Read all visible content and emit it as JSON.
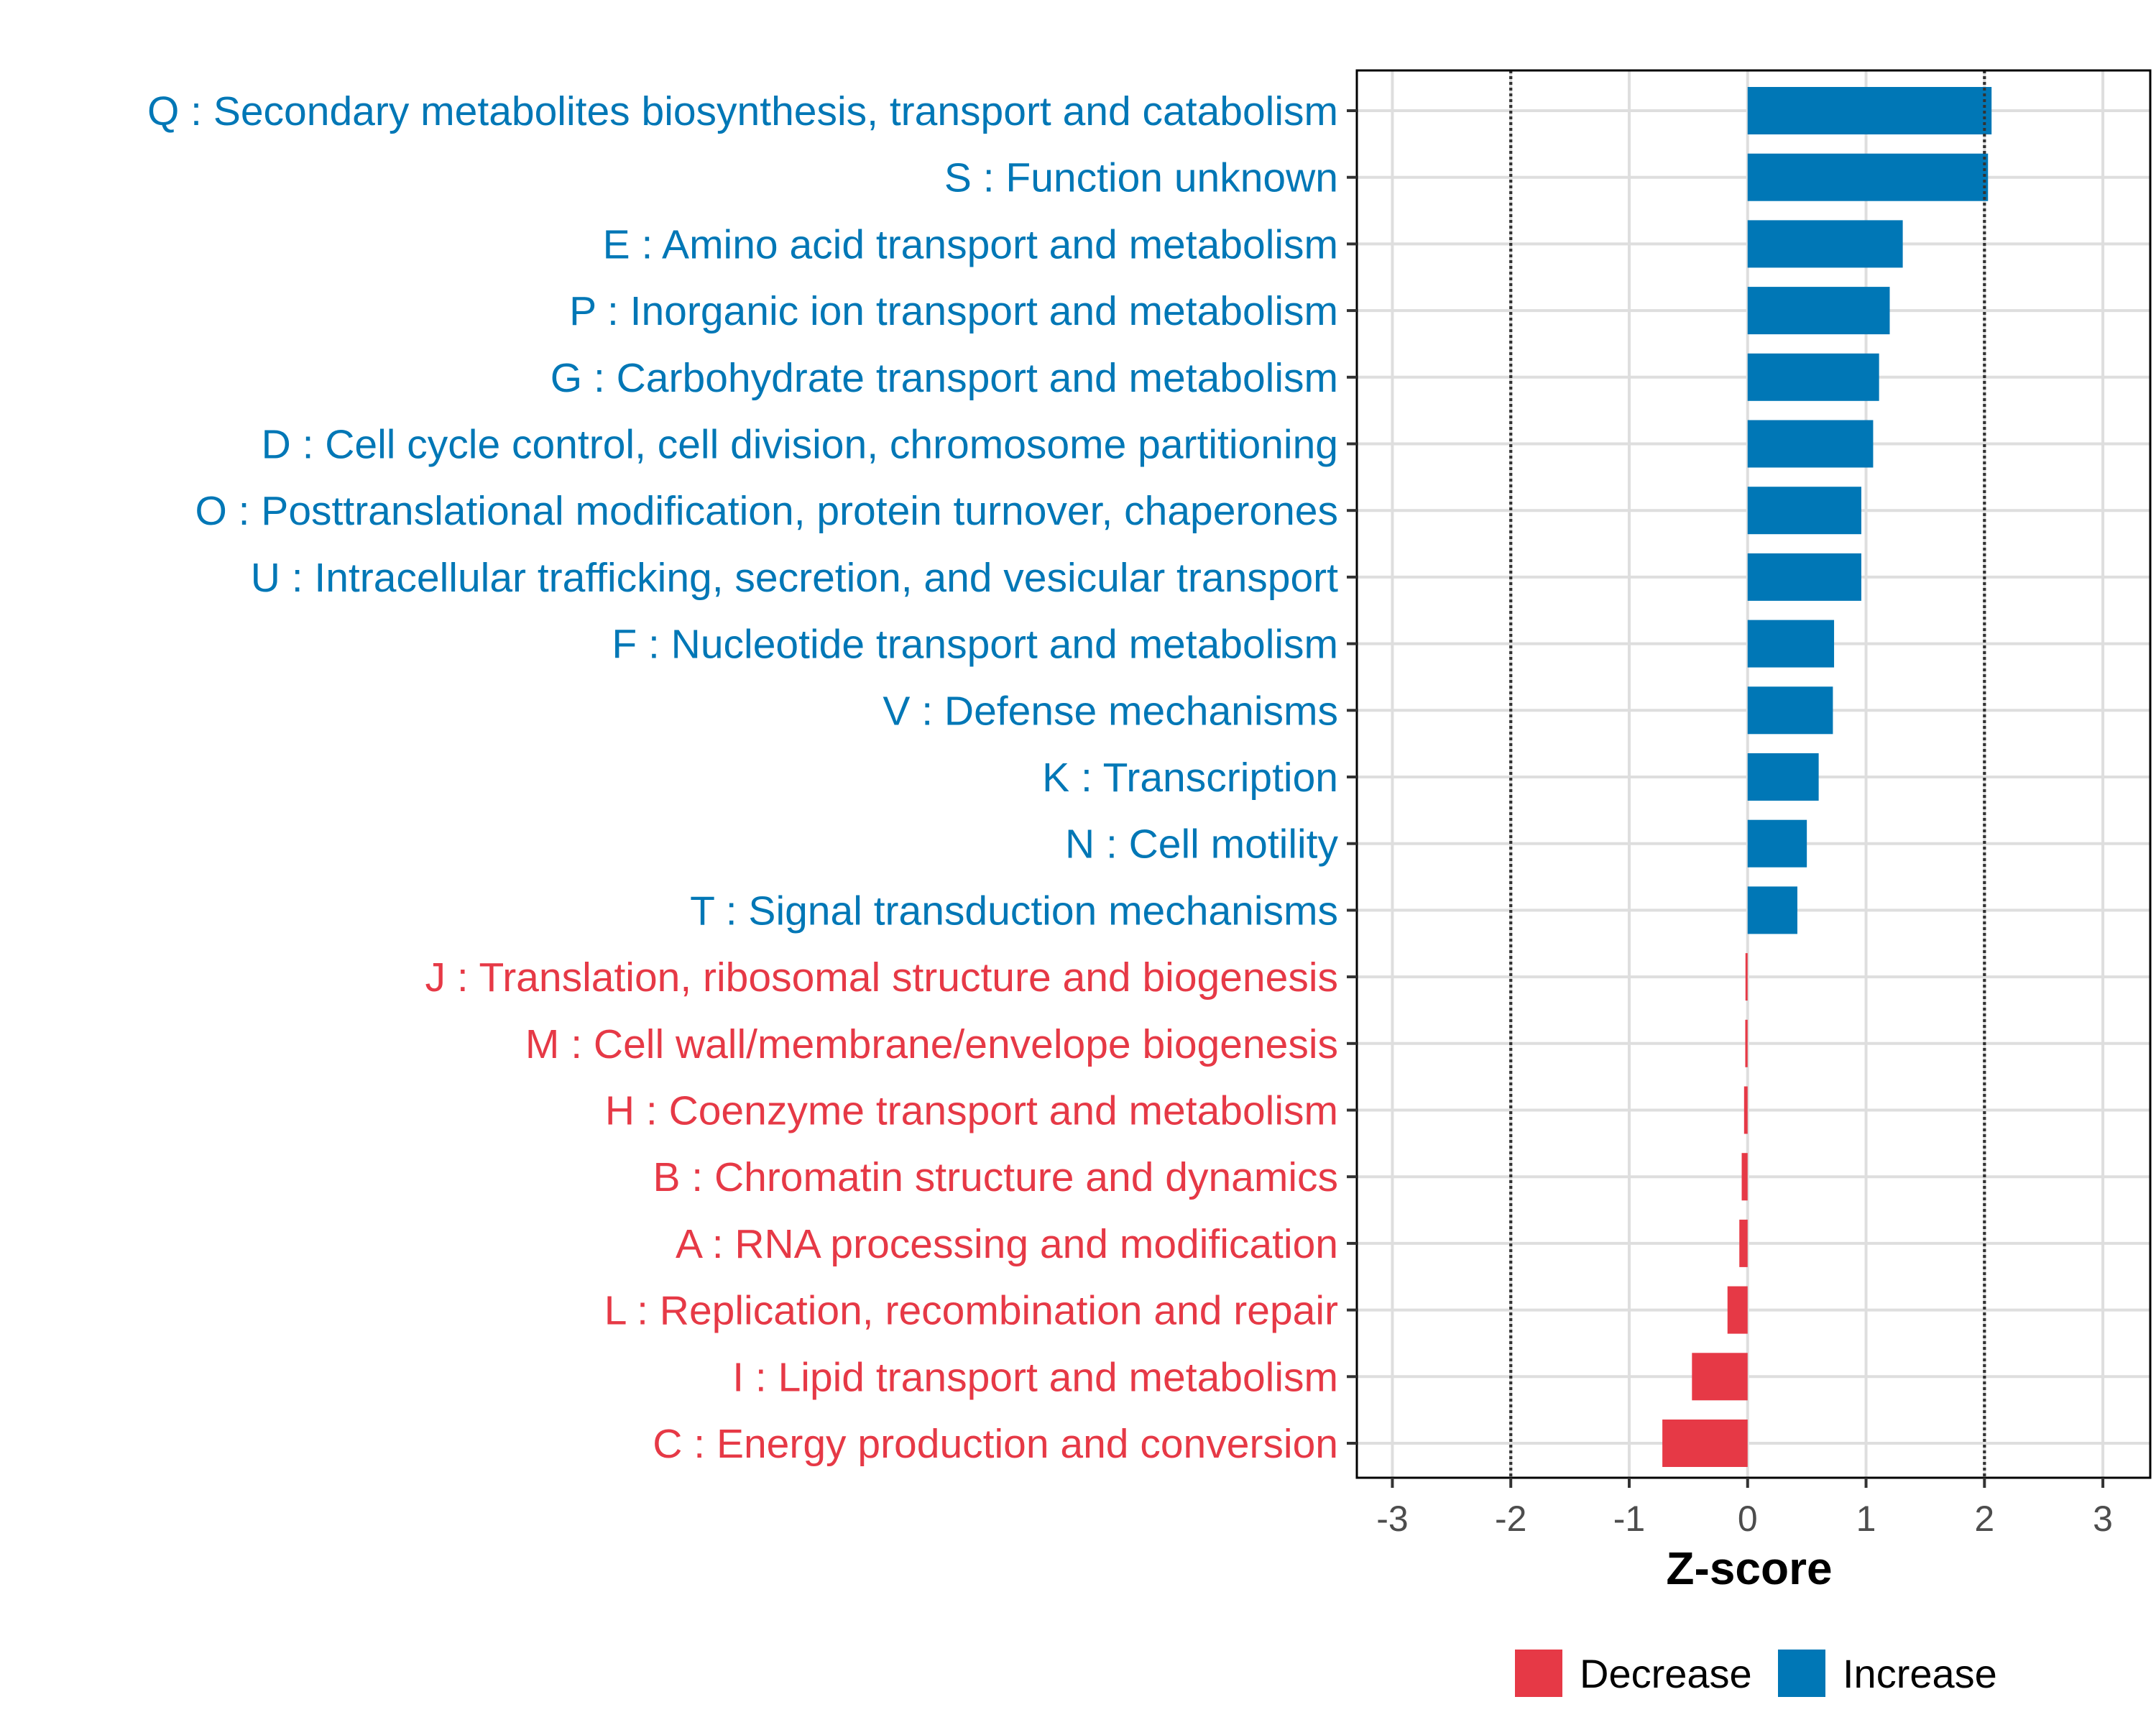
{
  "chart_data": {
    "type": "bar",
    "orientation": "horizontal",
    "title": "",
    "xlabel": "Z-score",
    "ylabel": "",
    "xlim": [
      -3.3,
      3.4
    ],
    "xticks": [
      -3,
      -2,
      -1,
      0,
      1,
      2,
      3
    ],
    "reference_lines": [
      -2,
      2
    ],
    "grid": true,
    "legend_position": "bottom",
    "colors": {
      "Decrease": "#e63946",
      "Increase": "#0077b6"
    },
    "legend": [
      {
        "name": "Decrease",
        "color": "#e63946"
      },
      {
        "name": "Increase",
        "color": "#0077b6"
      }
    ],
    "categories": [
      "Q : Secondary metabolites biosynthesis, transport and catabolism",
      "S : Function unknown",
      "E : Amino acid transport and metabolism",
      "P : Inorganic ion transport and metabolism",
      "G : Carbohydrate transport and metabolism",
      "D : Cell cycle control, cell division, chromosome partitioning",
      "O : Posttranslational modification, protein turnover, chaperones",
      "U : Intracellular trafficking, secretion, and vesicular transport",
      "F : Nucleotide transport and metabolism",
      "V : Defense mechanisms",
      "K : Transcription",
      "N : Cell motility",
      "T : Signal transduction mechanisms",
      "J : Translation, ribosomal structure and biogenesis",
      "M : Cell wall/membrane/envelope biogenesis",
      "H : Coenzyme transport and metabolism",
      "B : Chromatin structure and dynamics",
      "A : RNA processing and modification",
      "L : Replication, recombination and repair",
      "I : Lipid transport and metabolism",
      "C : Energy production and conversion"
    ],
    "values": [
      2.06,
      2.03,
      1.31,
      1.2,
      1.11,
      1.06,
      0.96,
      0.96,
      0.73,
      0.72,
      0.6,
      0.5,
      0.42,
      -0.01,
      -0.02,
      -0.03,
      -0.05,
      -0.07,
      -0.17,
      -0.47,
      -0.72
    ],
    "groups": [
      "Increase",
      "Increase",
      "Increase",
      "Increase",
      "Increase",
      "Increase",
      "Increase",
      "Increase",
      "Increase",
      "Increase",
      "Increase",
      "Increase",
      "Increase",
      "Decrease",
      "Decrease",
      "Decrease",
      "Decrease",
      "Decrease",
      "Decrease",
      "Decrease",
      "Decrease"
    ]
  }
}
